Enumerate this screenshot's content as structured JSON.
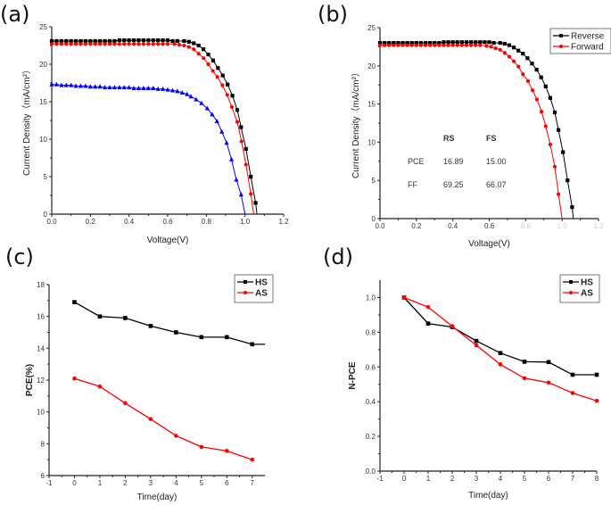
{
  "chart_data": [
    {
      "panel_label": "(a)",
      "type": "line",
      "xlabel": "Voltage(V)",
      "ylabel": "Current Density（mA/cm²）",
      "xlim": [
        0,
        1.2
      ],
      "ylim": [
        0,
        25
      ],
      "xticks": [
        "0.0",
        "0.2",
        "0.4",
        "0.6",
        "0.8",
        "1.0",
        "1.2"
      ],
      "yticks": [
        "0",
        "5",
        "10",
        "15",
        "20",
        "25"
      ],
      "grid": false,
      "series": [
        {
          "color": "#000000",
          "marker": "square",
          "x": [
            0,
            0.025,
            0.05,
            0.075,
            0.1,
            0.125,
            0.15,
            0.175,
            0.2,
            0.225,
            0.25,
            0.275,
            0.3,
            0.325,
            0.35,
            0.375,
            0.4,
            0.425,
            0.45,
            0.475,
            0.5,
            0.525,
            0.55,
            0.575,
            0.6,
            0.625,
            0.65,
            0.685,
            0.71,
            0.735,
            0.76,
            0.785,
            0.81,
            0.835,
            0.86,
            0.885,
            0.91,
            0.935,
            0.96,
            0.98,
            1.005,
            1.03,
            1.055,
            1.062
          ],
          "y": [
            23.1,
            23.1,
            23.1,
            23.1,
            23.1,
            23.1,
            23.1,
            23.1,
            23.1,
            23.1,
            23.1,
            23.1,
            23.1,
            23.1,
            23.2,
            23.2,
            23.2,
            23.2,
            23.2,
            23.2,
            23.2,
            23.2,
            23.2,
            23.2,
            23.2,
            23.1,
            23.1,
            23.1,
            23.0,
            22.8,
            22.5,
            22.0,
            21.3,
            20.5,
            19.5,
            18.5,
            17.3,
            15.8,
            13.9,
            11.6,
            8.7,
            5.0,
            1.5,
            0
          ]
        },
        {
          "color": "#ff0000",
          "marker": "circle",
          "x": [
            0,
            0.025,
            0.05,
            0.075,
            0.1,
            0.125,
            0.15,
            0.175,
            0.2,
            0.225,
            0.25,
            0.275,
            0.3,
            0.325,
            0.35,
            0.375,
            0.4,
            0.425,
            0.45,
            0.475,
            0.5,
            0.525,
            0.55,
            0.575,
            0.6,
            0.635,
            0.66,
            0.685,
            0.71,
            0.735,
            0.76,
            0.786,
            0.81,
            0.834,
            0.857,
            0.883,
            0.908,
            0.932,
            0.96,
            0.982,
            1.005,
            1.03,
            1.045
          ],
          "y": [
            22.7,
            22.7,
            22.7,
            22.7,
            22.7,
            22.7,
            22.7,
            22.7,
            22.7,
            22.7,
            22.7,
            22.7,
            22.7,
            22.7,
            22.7,
            22.7,
            22.7,
            22.7,
            22.7,
            22.7,
            22.7,
            22.7,
            22.7,
            22.7,
            22.7,
            22.7,
            22.6,
            22.5,
            22.3,
            22.0,
            21.4,
            20.8,
            20.0,
            19.1,
            18.3,
            17.2,
            15.9,
            14.3,
            12.3,
            9.7,
            6.6,
            2.7,
            0
          ]
        },
        {
          "color": "#0000ff",
          "marker": "triangle",
          "x": [
            0,
            0.025,
            0.05,
            0.075,
            0.1,
            0.125,
            0.15,
            0.175,
            0.2,
            0.225,
            0.25,
            0.275,
            0.3,
            0.325,
            0.35,
            0.375,
            0.4,
            0.425,
            0.45,
            0.475,
            0.5,
            0.525,
            0.55,
            0.575,
            0.6,
            0.625,
            0.65,
            0.675,
            0.7,
            0.72,
            0.747,
            0.775,
            0.805,
            0.83,
            0.855,
            0.88,
            0.905,
            0.93,
            0.955,
            0.98,
            1.0
          ],
          "y": [
            17.3,
            17.3,
            17.2,
            17.2,
            17.2,
            17.1,
            17.1,
            17.1,
            17.0,
            17.0,
            17.0,
            16.9,
            16.9,
            16.9,
            16.9,
            16.9,
            16.9,
            16.8,
            16.8,
            16.8,
            16.8,
            16.8,
            16.7,
            16.7,
            16.6,
            16.5,
            16.4,
            16.2,
            16.0,
            15.7,
            15.3,
            14.8,
            14.1,
            13.3,
            12.4,
            11.0,
            9.5,
            7.3,
            4.6,
            2.6,
            0
          ]
        }
      ]
    },
    {
      "panel_label": "(b)",
      "type": "line",
      "xlabel": "Voltage(V)",
      "ylabel": "Current Density（mA/cm²）",
      "xlim": [
        0,
        1.2
      ],
      "ylim": [
        0,
        25
      ],
      "xticks": [
        "0.0",
        "0.2",
        "0.4",
        "0.6",
        "0.8",
        "1.0",
        "1.2"
      ],
      "yticks": [
        "0",
        "5",
        "10",
        "15",
        "20",
        "25"
      ],
      "grid": false,
      "legend_position": "top-right",
      "series": [
        {
          "name": "Reverse",
          "color": "#000000",
          "marker": "square",
          "x": [
            0,
            0.025,
            0.05,
            0.075,
            0.1,
            0.125,
            0.15,
            0.175,
            0.2,
            0.225,
            0.25,
            0.275,
            0.3,
            0.325,
            0.35,
            0.375,
            0.4,
            0.425,
            0.45,
            0.475,
            0.5,
            0.525,
            0.55,
            0.575,
            0.6,
            0.625,
            0.66,
            0.685,
            0.71,
            0.735,
            0.76,
            0.785,
            0.81,
            0.835,
            0.86,
            0.885,
            0.91,
            0.935,
            0.96,
            0.98,
            1.005,
            1.03,
            1.055,
            1.062
          ],
          "y": [
            23.0,
            23.0,
            23.0,
            23.0,
            23.0,
            23.0,
            23.0,
            23.0,
            23.0,
            23.0,
            23.0,
            23.0,
            23.0,
            23.0,
            23.1,
            23.1,
            23.1,
            23.1,
            23.1,
            23.1,
            23.1,
            23.1,
            23.1,
            23.1,
            23.1,
            23.0,
            23.0,
            22.9,
            22.7,
            22.4,
            22.0,
            21.6,
            21.0,
            20.3,
            19.5,
            18.5,
            17.3,
            15.8,
            13.9,
            11.6,
            8.7,
            5.0,
            1.5,
            0
          ]
        },
        {
          "name": "Forward",
          "color": "#ff0000",
          "marker": "circle",
          "x": [
            0,
            0.025,
            0.05,
            0.075,
            0.1,
            0.125,
            0.15,
            0.175,
            0.2,
            0.225,
            0.25,
            0.275,
            0.3,
            0.325,
            0.35,
            0.375,
            0.4,
            0.425,
            0.45,
            0.475,
            0.5,
            0.525,
            0.55,
            0.585,
            0.61,
            0.635,
            0.66,
            0.685,
            0.71,
            0.735,
            0.76,
            0.785,
            0.813,
            0.838,
            0.862,
            0.887,
            0.91,
            0.935,
            0.96,
            0.98,
            1.0
          ],
          "y": [
            22.7,
            22.7,
            22.7,
            22.7,
            22.7,
            22.7,
            22.7,
            22.7,
            22.7,
            22.7,
            22.7,
            22.7,
            22.7,
            22.7,
            22.7,
            22.7,
            22.7,
            22.7,
            22.7,
            22.7,
            22.7,
            22.7,
            22.7,
            22.6,
            22.5,
            22.3,
            22.1,
            21.7,
            21.2,
            20.6,
            19.9,
            18.9,
            18.0,
            16.8,
            15.6,
            14.0,
            12.1,
            9.7,
            6.8,
            3.2,
            0
          ]
        }
      ],
      "table": {
        "headers": [
          "",
          "RS",
          "FS"
        ],
        "rows": [
          [
            "PCE",
            "16.89",
            "15.00"
          ],
          [
            "FF",
            "69.25",
            "66.07"
          ]
        ]
      }
    },
    {
      "panel_label": "(c)",
      "type": "line",
      "xlabel": "Time(day)",
      "ylabel": "PCE(%)",
      "xlim": [
        -1,
        7.5
      ],
      "ylim": [
        6,
        18
      ],
      "xticks": [
        "-1",
        "0",
        "1",
        "2",
        "3",
        "4",
        "5",
        "6",
        "7"
      ],
      "yticks": [
        "6",
        "8",
        "10",
        "12",
        "14",
        "16",
        "18"
      ],
      "grid": false,
      "legend_position": "top-right",
      "series": [
        {
          "name": "HS",
          "color": "#000000",
          "marker": "square",
          "x": [
            0,
            1,
            2,
            3,
            4,
            5,
            6,
            7,
            7.5
          ],
          "y": [
            16.9,
            16.0,
            15.9,
            15.4,
            15.0,
            14.7,
            14.7,
            14.25,
            14.25
          ],
          "marker_count": 8
        },
        {
          "name": "AS",
          "color": "#ff0000",
          "marker": "circle",
          "x": [
            0,
            1,
            2,
            3,
            4,
            5,
            6,
            7
          ],
          "y": [
            12.1,
            11.6,
            10.55,
            9.55,
            8.5,
            7.8,
            7.55,
            7.0
          ]
        }
      ]
    },
    {
      "panel_label": "(d)",
      "type": "line",
      "xlabel": "Time(day)",
      "ylabel": "N-PCE",
      "xlim": [
        -1,
        8
      ],
      "ylim": [
        0,
        1.1
      ],
      "xticks": [
        "-1",
        "0",
        "1",
        "2",
        "3",
        "4",
        "5",
        "6",
        "7",
        "8"
      ],
      "yticks": [
        "0.0",
        "0.2",
        "0.4",
        "0.6",
        "0.8",
        "1.0"
      ],
      "grid": false,
      "legend_position": "top-right",
      "series": [
        {
          "name": "HS",
          "color": "#000000",
          "marker": "square",
          "x": [
            0,
            1,
            2,
            3,
            4,
            5,
            6,
            7,
            8
          ],
          "y": [
            1.0,
            0.85,
            0.83,
            0.75,
            0.68,
            0.63,
            0.628,
            0.555,
            0.555
          ]
        },
        {
          "name": "AS",
          "color": "#ff0000",
          "marker": "circle",
          "x": [
            0,
            1,
            2,
            3,
            4,
            5,
            6,
            7,
            8
          ],
          "y": [
            1.0,
            0.945,
            0.835,
            0.725,
            0.615,
            0.535,
            0.51,
            0.45,
            0.405
          ]
        }
      ]
    }
  ]
}
